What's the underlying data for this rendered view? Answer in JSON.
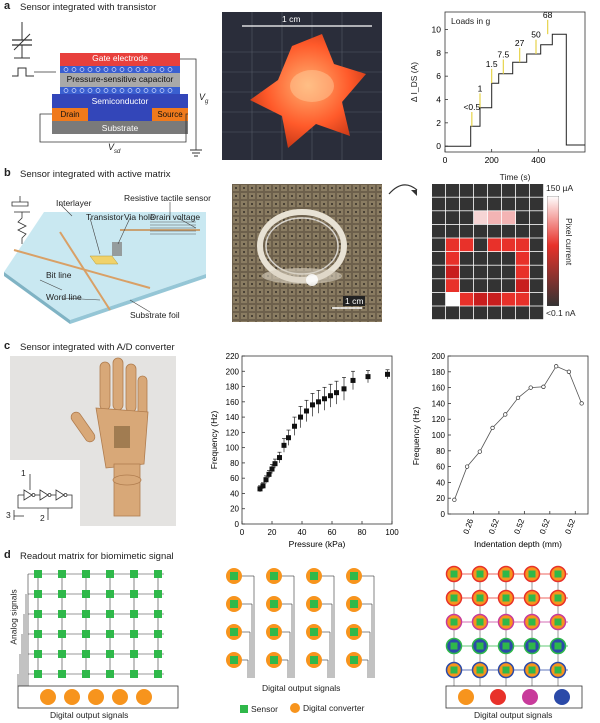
{
  "panels": {
    "a": {
      "label": "a",
      "title": "Sensor integrated with transistor",
      "layers": {
        "gate": "Gate electrode",
        "capacitor": "Pressure-sensitive capacitor",
        "semiconductor": "Semiconductor",
        "drain": "Drain",
        "source": "Source",
        "substrate": "Substrate"
      },
      "vg": "V",
      "vg_sub": "g",
      "vsd": "V",
      "vsd_sub": "sd",
      "scale_label": "1 cm"
    },
    "b": {
      "label": "b",
      "title": "Sensor integrated with active matrix",
      "callouts": {
        "interlayer": "Interlayer",
        "transistor": "Transistor",
        "via_hole": "Via hole",
        "resistive": "Resistive tactile sensor",
        "drain_voltage": "Drain voltage",
        "bit_line": "Bit line",
        "word_line": "Word line",
        "substrate_foil": "Substrate foil"
      },
      "scale_label": "1 cm",
      "colorbar": {
        "max": "150 µA",
        "min": "<0.1 nA",
        "label": "Pixel current"
      }
    },
    "c": {
      "label": "c",
      "title": "Sensor integrated with A/D converter",
      "circuit_labels": [
        "1",
        "2",
        "3"
      ]
    },
    "d": {
      "label": "d",
      "title": "Readout matrix for biomimetic signal",
      "analog": "Analog signals",
      "digital_left": "Digital output signals",
      "digital_mid": "Digital output signals",
      "digital_right": "Digital output signals",
      "legend_sensor": "Sensor",
      "legend_converter": "Digital converter",
      "colors": {
        "sensor": "#2fb84a",
        "converter": "#f7941d",
        "red": "#e8312a",
        "magenta": "#c83b9b",
        "blue": "#2b4aa8"
      }
    }
  },
  "chart_data": [
    {
      "type": "line",
      "panel": "a",
      "xlabel": "Time (s)",
      "ylabel": "Δ I_DS (A)",
      "xlim": [
        0,
        600
      ],
      "ylim": [
        -0.5,
        11.5
      ],
      "xticks": [
        0,
        200,
        400
      ],
      "yticks": [
        0,
        2,
        4,
        6,
        8,
        10
      ],
      "legend_title": "Loads in g",
      "annotations": [
        "<0.5",
        "1",
        "1.5",
        "7.5",
        "27",
        "50",
        "68"
      ],
      "annotation_x": [
        115,
        150,
        200,
        250,
        320,
        390,
        440
      ],
      "x": [
        0,
        110,
        110,
        150,
        150,
        200,
        200,
        230,
        230,
        290,
        290,
        350,
        350,
        410,
        410,
        460,
        460,
        520,
        520,
        600
      ],
      "y": [
        0,
        0,
        1.7,
        1.7,
        3.3,
        3.3,
        5.4,
        5.4,
        6.2,
        6.2,
        7.2,
        7.2,
        7.9,
        7.9,
        8.7,
        8.7,
        9.6,
        9.6,
        0.1,
        0.1
      ]
    },
    {
      "type": "scatter",
      "panel": "c-left",
      "xlabel": "Pressure (kPa)",
      "ylabel": "Frequency (Hz)",
      "xlim": [
        0,
        100
      ],
      "ylim": [
        0,
        220
      ],
      "xticks": [
        0,
        20,
        40,
        60,
        80,
        100
      ],
      "yticks": [
        0,
        20,
        40,
        60,
        80,
        100,
        120,
        140,
        160,
        180,
        200,
        220
      ],
      "x": [
        12,
        14,
        16,
        18,
        20,
        22,
        25,
        28,
        31,
        35,
        39,
        43,
        47,
        51,
        55,
        59,
        63,
        68,
        74,
        84,
        97
      ],
      "y": [
        46,
        50,
        58,
        65,
        72,
        79,
        87,
        103,
        113,
        128,
        140,
        148,
        156,
        160,
        164,
        168,
        172,
        177,
        188,
        193,
        196
      ],
      "yerr": [
        4,
        4,
        5,
        5,
        6,
        6,
        7,
        9,
        10,
        12,
        14,
        14,
        15,
        15,
        15,
        15,
        15,
        15,
        12,
        8,
        6
      ]
    },
    {
      "type": "line",
      "panel": "c-right",
      "xlabel": "Indentation depth (mm)",
      "ylabel": "Frequency (Hz)",
      "xlim": [
        0,
        11
      ],
      "ylim": [
        0,
        200
      ],
      "yticks": [
        0,
        20,
        40,
        60,
        80,
        100,
        120,
        140,
        160,
        180,
        200
      ],
      "xtick_labels": [
        "0.26",
        "0.52",
        "0.52",
        "0.52",
        "0.52"
      ],
      "xtick_pos": [
        2,
        4,
        6,
        8,
        10
      ],
      "x": [
        0.5,
        1.5,
        2.5,
        3.5,
        4.5,
        5.5,
        6.5,
        7.5,
        8.5,
        9.5,
        10.5
      ],
      "y": [
        18,
        60,
        79,
        109,
        126,
        147,
        160,
        161,
        187,
        180,
        140
      ]
    }
  ]
}
